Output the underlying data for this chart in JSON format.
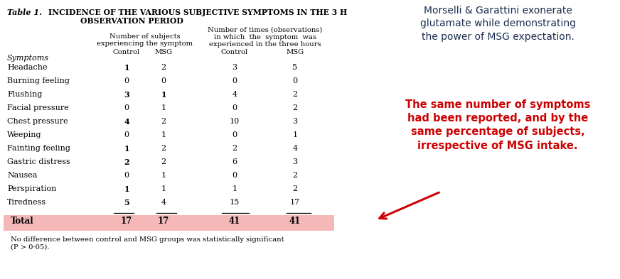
{
  "title_prefix": "Table 1.",
  "title_main_line1": "INCIDENCE OF THE VARIOUS SUBJECTIVE SYMPTOMS IN THE 3 H",
  "title_main_line2": "OBSERVATION PERIOD",
  "col_symptoms": "Symptoms",
  "col_header_subj_1": "Number of subjects",
  "col_header_subj_2": "experiencing the symptom",
  "col_header_subj_ctrl": "Control",
  "col_header_subj_msg": "MSG",
  "col_header_obs_1": "Number of times (observations)",
  "col_header_obs_2": "in which  the  symptom  was",
  "col_header_obs_3": "experienced in the three hours",
  "col_header_obs_ctrl": "Control",
  "col_header_obs_msg": "MSG",
  "symptoms": [
    "Headache",
    "Burning feeling",
    "Flushing",
    "Facial pressure",
    "Chest pressure",
    "Weeping",
    "Fainting feeling",
    "Gastric distress",
    "Nausea",
    "Perspiration",
    "Tiredness"
  ],
  "subj_control": [
    1,
    0,
    3,
    0,
    4,
    0,
    1,
    2,
    0,
    1,
    5
  ],
  "subj_msg": [
    2,
    0,
    1,
    1,
    2,
    1,
    2,
    2,
    1,
    1,
    4
  ],
  "obs_control": [
    3,
    0,
    4,
    0,
    10,
    0,
    2,
    6,
    0,
    1,
    15
  ],
  "obs_msg": [
    5,
    0,
    2,
    2,
    3,
    1,
    4,
    3,
    2,
    2,
    17
  ],
  "total_label": "Total",
  "total_subj_ctrl": 17,
  "total_subj_msg": 17,
  "total_obs_ctrl": 41,
  "total_obs_msg": 41,
  "footnote_line1": "No difference between control and MSG groups was statistically significant",
  "footnote_line2": "(P > 0·05).",
  "right_top": "Morselli & Garattini exonerate\nglutamate while demonstrating\nthe power of MSG expectation.",
  "right_bottom": "The same number of symptoms\nhad been reported, and by the\nsame percentage of subjects,\nirrespective of MSG intake.",
  "total_bg": "#f5b8b8",
  "right_top_color": "#1c2d4f",
  "right_bottom_color": "#cc0000",
  "bg_color": "#ffffff",
  "arrow_color": "#cc0000",
  "subj_ctrl_bold": [
    true,
    false,
    true,
    false,
    true,
    false,
    true,
    true,
    false,
    true,
    true
  ],
  "subj_msg_bold": [
    false,
    false,
    true,
    false,
    false,
    false,
    false,
    false,
    false,
    false,
    false
  ]
}
